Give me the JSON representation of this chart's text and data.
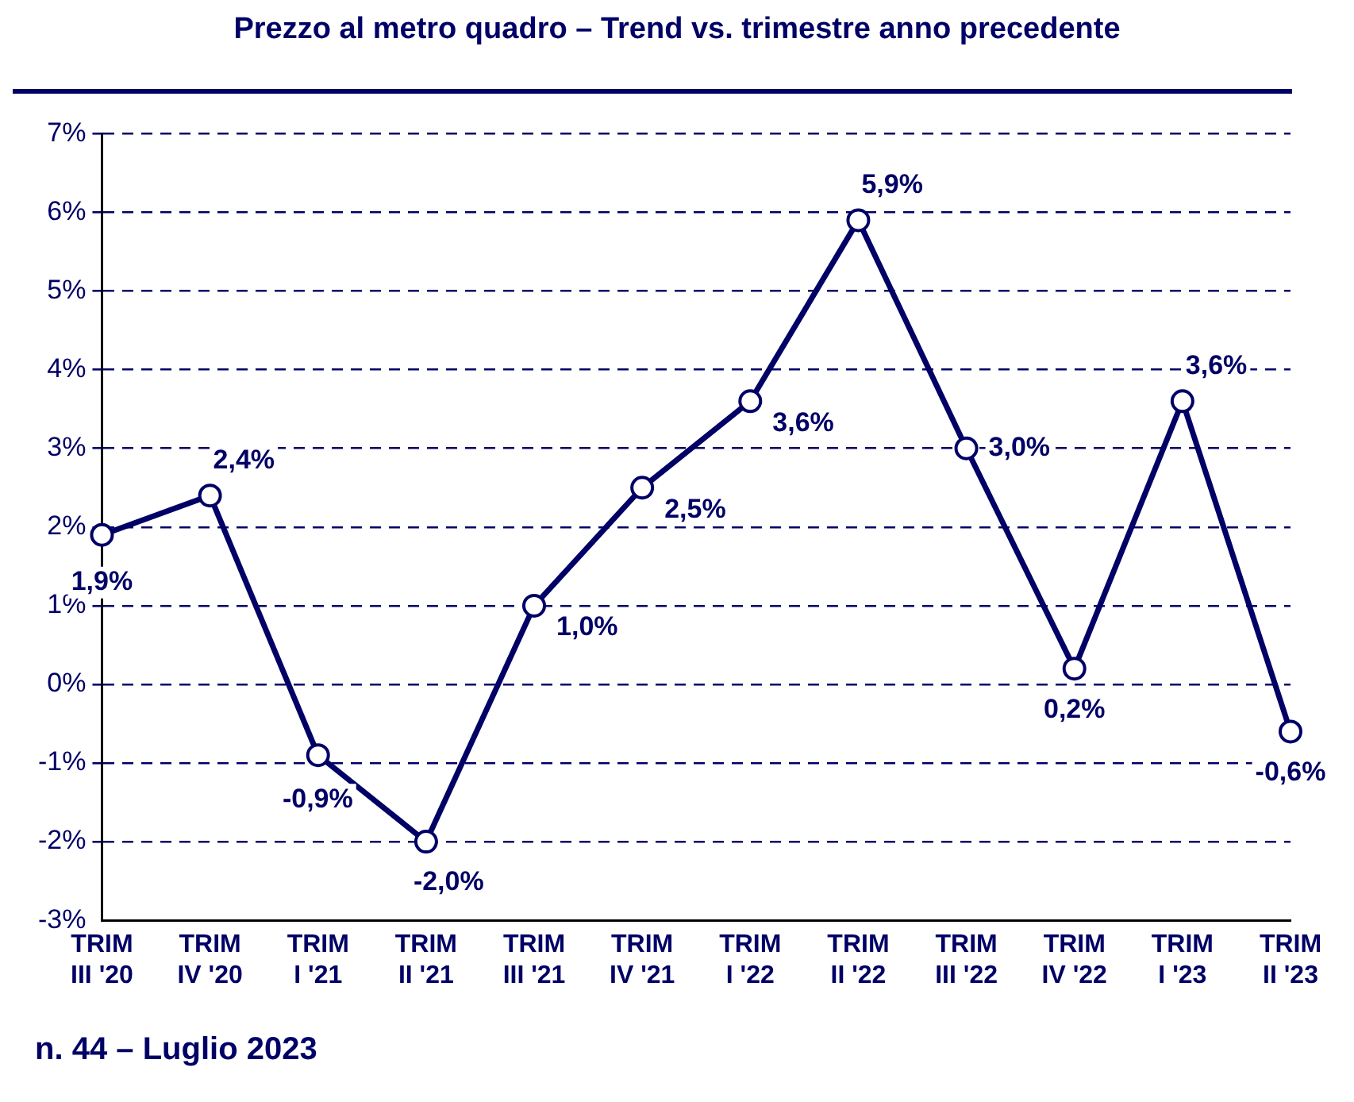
{
  "chart_data": {
    "type": "line",
    "title": "Prezzo al metro quadro – Trend vs. trimestre anno precedente",
    "categories": [
      "TRIM III '20",
      "TRIM IV '20",
      "TRIM I '21",
      "TRIM II '21",
      "TRIM III '21",
      "TRIM IV '21",
      "TRIM I '22",
      "TRIM II '22",
      "TRIM III '22",
      "TRIM IV '22",
      "TRIM I '23",
      "TRIM II '23"
    ],
    "series": [
      {
        "color": "#000066",
        "values": [
          1.9,
          2.4,
          -0.9,
          -2.0,
          1.0,
          2.5,
          3.6,
          5.9,
          3.0,
          0.2,
          3.6,
          -0.6
        ],
        "value_labels": [
          "1,9%",
          "2,4%",
          "-0,9%",
          "-2,0%",
          "1,0%",
          "2,5%",
          "3,6%",
          "5,9%",
          "3,0%",
          "0,2%",
          "3,6%",
          "-0,6%"
        ]
      }
    ],
    "ylim": [
      -3,
      7
    ],
    "yticks": [
      {
        "value": -3,
        "label": "-3%"
      },
      {
        "value": -2,
        "label": "-2%"
      },
      {
        "value": -1,
        "label": "-1%"
      },
      {
        "value": 0,
        "label": "0%"
      },
      {
        "value": 1,
        "label": "1%"
      },
      {
        "value": 2,
        "label": "2%"
      },
      {
        "value": 3,
        "label": "3%"
      },
      {
        "value": 4,
        "label": "4%"
      },
      {
        "value": 5,
        "label": "5%"
      },
      {
        "value": 6,
        "label": "6%"
      },
      {
        "value": 7,
        "label": "7%"
      }
    ],
    "grid": "y",
    "legend": false,
    "marker": "circle",
    "line_style": "solid",
    "annotations": [
      "n. 44 – Luglio 2023"
    ]
  }
}
